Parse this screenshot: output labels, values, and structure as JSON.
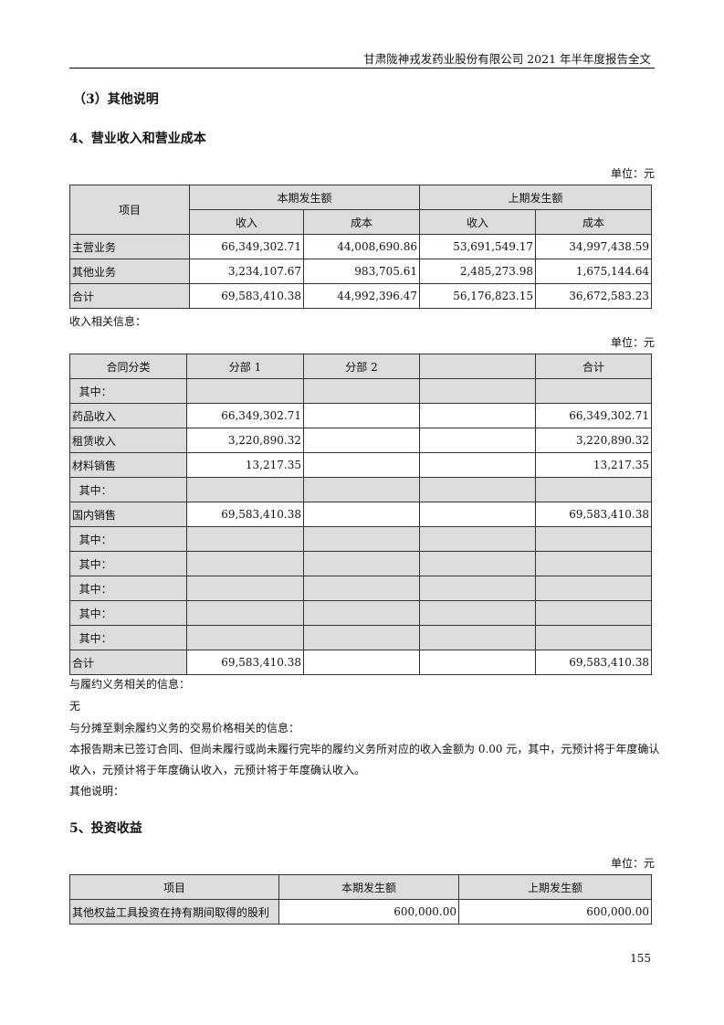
{
  "header": {
    "title": "甘肃陇神戎发药业股份有限公司 2021 年半年度报告全文"
  },
  "section_other_note": "（3）其他说明",
  "section4": {
    "title": "4、营业收入和营业成本",
    "unit": "单位：元",
    "head": {
      "item": "项目",
      "current": "本期发生额",
      "previous": "上期发生额",
      "income": "收入",
      "cost": "成本"
    },
    "rows": [
      [
        "主营业务",
        "66,349,302.71",
        "44,008,690.86",
        "53,691,549.17",
        "34,997,438.59"
      ],
      [
        "其他业务",
        "3,234,107.67",
        "983,705.61",
        "2,485,273.98",
        "1,675,144.64"
      ],
      [
        "合计",
        "69,583,410.38",
        "44,992,396.47",
        "56,176,823.15",
        "36,672,583.23"
      ]
    ],
    "revenue_info_label": "收入相关信息：",
    "unit2": "单位：元",
    "contract_head": [
      "合同分类",
      "分部 1",
      "分部 2",
      "",
      "合计"
    ],
    "contract_rows": [
      [
        "  其中：",
        "",
        "",
        "",
        ""
      ],
      [
        "药品收入",
        "66,349,302.71",
        "",
        "",
        "66,349,302.71"
      ],
      [
        "租赁收入",
        "3,220,890.32",
        "",
        "",
        "3,220,890.32"
      ],
      [
        "材料销售",
        "13,217.35",
        "",
        "",
        "13,217.35"
      ],
      [
        "  其中：",
        "",
        "",
        "",
        ""
      ],
      [
        "国内销售",
        "69,583,410.38",
        "",
        "",
        "69,583,410.38"
      ],
      [
        "  其中：",
        "",
        "",
        "",
        ""
      ],
      [
        "  其中：",
        "",
        "",
        "",
        ""
      ],
      [
        "  其中：",
        "",
        "",
        "",
        ""
      ],
      [
        "  其中：",
        "",
        "",
        "",
        ""
      ],
      [
        "  其中：",
        "",
        "",
        "",
        ""
      ],
      [
        "合计",
        "69,583,410.38",
        "",
        "",
        "69,583,410.38"
      ]
    ],
    "obligation_label": "与履约义务相关的信息：",
    "obligation_value": "无",
    "allocation_label": "与分摊至剩余履约义务的交易价格相关的信息：",
    "allocation_text_1": "本报告期末已签订合同、但尚未履行或尚未履行完毕的履约义务所对应的收入金额为 0.00 元，其中，元预计将于年度确认",
    "allocation_text_2": "收入，元预计将于年度确认收入，元预计将于年度确认收入。",
    "other_note": "其他说明："
  },
  "section5": {
    "title": "5、投资收益",
    "unit": "单位：元",
    "head": [
      "项目",
      "本期发生额",
      "上期发生额"
    ],
    "rows": [
      [
        "其他权益工具投资在持有期间取得的股利",
        "600,000.00",
        "600,000.00"
      ]
    ]
  },
  "page_number": "155"
}
